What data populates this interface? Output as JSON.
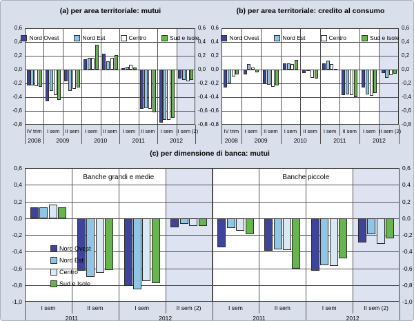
{
  "figure": {
    "background": "#d9e0ec",
    "plot_background": "#ffffff",
    "highlight_background": "#dee3f2",
    "grid_color": "#4f4f4f",
    "border_color": "#3a3a3a",
    "bar_border_color": "#2b2b2b"
  },
  "legend_labels": [
    "Nord Ovest",
    "Nord Est",
    "Centro",
    "Sud e Isole"
  ],
  "chart_data": [
    {
      "id": "a",
      "type": "bar",
      "title": "(a) per area territoriale: mutui",
      "ylim": [
        -0.8,
        0.6
      ],
      "ytick_labels": [
        "0,6",
        "0,4",
        "0,2",
        "0,0",
        "-0,2",
        "-0,4",
        "-0,6",
        "-0,8"
      ],
      "grid": true,
      "legend_position": "top",
      "categories": [
        "IV trim",
        "I sem",
        "II sem",
        "I sem",
        "II sem",
        "I sem",
        "II sem",
        "I sem",
        "II sem (2)"
      ],
      "years": [
        {
          "label": "2008",
          "span": 1
        },
        {
          "label": "2009",
          "span": 2
        },
        {
          "label": "2010",
          "span": 2
        },
        {
          "label": "2011",
          "span": 2
        },
        {
          "label": "2012",
          "span": 2
        }
      ],
      "highlight_groups": [
        8
      ],
      "series_colors": [
        "#3e4499",
        "#8fc6e6",
        "#ffffff",
        "#66b54d"
      ],
      "series": [
        {
          "name": "Nord Ovest",
          "values": [
            -0.23,
            -0.46,
            -0.17,
            0.15,
            0.23,
            0.02,
            -0.57,
            -0.77,
            -0.13
          ]
        },
        {
          "name": "Nord Est",
          "values": [
            -0.23,
            -0.31,
            -0.31,
            0.17,
            0.12,
            0.04,
            -0.56,
            -0.73,
            -0.15
          ]
        },
        {
          "name": "Centro",
          "values": [
            -0.24,
            -0.37,
            -0.28,
            0.17,
            0.17,
            0.07,
            -0.57,
            -0.73,
            -0.17
          ]
        },
        {
          "name": "Sud e Isole",
          "values": [
            -0.25,
            -0.44,
            -0.26,
            0.36,
            0.21,
            0.03,
            -0.62,
            -0.7,
            -0.15
          ]
        }
      ]
    },
    {
      "id": "b",
      "type": "bar",
      "title": "(b) per area territoriale: credito al consumo",
      "ylim": [
        -0.8,
        0.6
      ],
      "ytick_labels": [
        "0,6",
        "0,4",
        "0,2",
        "0,0",
        "-0,2",
        "-0,4",
        "-0,6",
        "-0,8"
      ],
      "grid": true,
      "legend_position": "top",
      "categories": [
        "IV trim",
        "I sem",
        "II sem",
        "I sem",
        "II sem",
        "I sem",
        "II sem",
        "I sem",
        "II sem (2)"
      ],
      "years": [
        {
          "label": "2008",
          "span": 1
        },
        {
          "label": "2009",
          "span": 2
        },
        {
          "label": "2010",
          "span": 2
        },
        {
          "label": "2011",
          "span": 2
        },
        {
          "label": "2012",
          "span": 2
        }
      ],
      "highlight_groups": [
        8
      ],
      "series_colors": [
        "#3e4499",
        "#8fc6e6",
        "#ffffff",
        "#66b54d"
      ],
      "series": [
        {
          "name": "Nord Ovest",
          "values": [
            -0.26,
            -0.07,
            -0.21,
            0.09,
            -0.05,
            0.09,
            -0.37,
            -0.26,
            -0.05
          ]
        },
        {
          "name": "Nord Est",
          "values": [
            -0.2,
            0.08,
            -0.22,
            0.09,
            -0.01,
            0.13,
            -0.36,
            -0.36,
            -0.12
          ]
        },
        {
          "name": "Centro",
          "values": [
            -0.1,
            0.03,
            -0.25,
            0.08,
            -0.12,
            0.08,
            -0.37,
            -0.38,
            -0.08
          ]
        },
        {
          "name": "Sud e Isole",
          "values": [
            -0.07,
            -0.04,
            -0.23,
            0.14,
            -0.13,
            0.01,
            -0.4,
            -0.34,
            -0.06
          ]
        }
      ]
    },
    {
      "id": "c",
      "type": "bar",
      "title": "(c) per dimensione di banca: mutui",
      "ylim": [
        -1.0,
        0.6
      ],
      "ytick_labels": [
        "0,6",
        "0,4",
        "0,2",
        "0,0",
        "-0,2",
        "-0,4",
        "-0,6",
        "-0,8",
        "-1,0"
      ],
      "grid": true,
      "legend_position": "bottom-left",
      "categories": [
        "I sem",
        "II sem",
        "I sem",
        "II sem (2)",
        "I sem",
        "II sem",
        "I sem",
        "II sem (2)"
      ],
      "years": [
        {
          "label": "2011",
          "span": 2
        },
        {
          "label": "2012",
          "span": 2
        },
        {
          "label": "2011",
          "span": 2
        },
        {
          "label": "2012",
          "span": 2
        }
      ],
      "sections": [
        {
          "label": "Banche grandi e medie",
          "from": 0,
          "to": 3
        },
        {
          "label": "Banche piccole",
          "from": 4,
          "to": 7
        }
      ],
      "section_break_after": 3,
      "highlight_groups": [
        3,
        7
      ],
      "series_colors": [
        "#3e4499",
        "#8fc6e6",
        "#d9e8f3",
        "#66b54d"
      ],
      "series": [
        {
          "name": "Nord Ovest",
          "values": [
            0.13,
            -0.63,
            -0.81,
            -0.11,
            -0.35,
            -0.39,
            -0.63,
            -0.29
          ]
        },
        {
          "name": "Nord Est",
          "values": [
            0.13,
            -0.7,
            -0.85,
            -0.07,
            -0.12,
            -0.37,
            -0.56,
            -0.19
          ]
        },
        {
          "name": "Centro",
          "values": [
            0.16,
            -0.65,
            -0.75,
            -0.09,
            -0.15,
            -0.38,
            -0.57,
            -0.31
          ]
        },
        {
          "name": "Sud e Isole",
          "values": [
            0.13,
            -0.62,
            -0.78,
            -0.09,
            -0.19,
            -0.6,
            -0.48,
            -0.24
          ]
        }
      ]
    }
  ]
}
